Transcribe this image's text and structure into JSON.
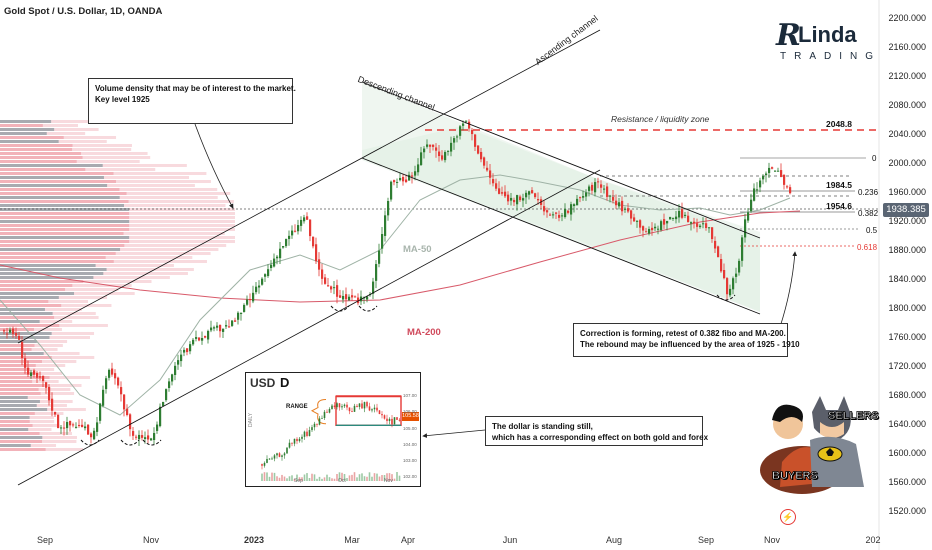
{
  "header": {
    "symbol": "Gold Spot / U.S. Dollar, 1D, OANDA"
  },
  "brand": {
    "name": "Linda",
    "sub": "TRADING",
    "initial": "R"
  },
  "price_tag": {
    "value": "1938.385",
    "color": "#5a6573"
  },
  "colors": {
    "up": "#2e7d32",
    "down": "#e53935",
    "ma200": "#d85a6a",
    "ma50": "#9fb3a6",
    "channel_fill": "#dfeee2",
    "resistance": "#e53935"
  },
  "annotations": {
    "descending": "Descending channel",
    "ascending": "Ascending channel",
    "resistance": "Resistance / liquidity zone",
    "ma50": "MA-50",
    "ma200": "MA-200",
    "callout1": [
      "Volume density that may be of interest to the market.",
      "Key level 1925"
    ],
    "callout2": [
      "Correction is forming, retest of 0.382 fibo and MA-200.",
      "The rebound may be influenced by the area of 1925 - 1910"
    ],
    "callout3": [
      "The dollar is standing still,",
      "which has a corresponding effect on both gold and forex"
    ]
  },
  "levels": {
    "l1": "2048.8",
    "l2": "1984.5",
    "l3": "1954.6"
  },
  "fibs": {
    "f0": "0",
    "f236": "0.236",
    "f382": "0.382",
    "f5": "0.5",
    "f618": "0.618"
  },
  "sellers_label": "SELLERS",
  "buyers_label": "BUYERS",
  "inset": {
    "title": "USD",
    "range_label": "RANGE",
    "side_label": "DAILY",
    "price_tag": "105.58",
    "y_ticks": [
      "107.00",
      "106.00",
      "105.00",
      "104.00",
      "103.00",
      "102.00"
    ],
    "x_ticks": [
      "Sep",
      "Oct",
      "Nov"
    ]
  },
  "chart_data": {
    "type": "candlestick",
    "title": "Gold Spot / U.S. Dollar, 1D, OANDA",
    "y_ticks": [
      "2200.000",
      "2160.000",
      "2120.000",
      "2080.000",
      "2040.000",
      "2000.000",
      "1960.000",
      "1920.000",
      "1880.000",
      "1840.000",
      "1800.000",
      "1760.000",
      "1720.000",
      "1680.000",
      "1640.000",
      "1600.000",
      "1560.000",
      "1520.000"
    ],
    "x_ticks": [
      "Sep",
      "Nov",
      "2023",
      "Mar",
      "Apr",
      "Jun",
      "Aug",
      "Sep",
      "Nov",
      "202"
    ],
    "ylim": [
      1510,
      2210
    ],
    "last_price": 1938.385,
    "approx_close_path": [
      {
        "t": "2022-08",
        "v": 1770
      },
      {
        "t": "2022-09",
        "v": 1740
      },
      {
        "t": "2022-09-28",
        "v": 1620
      },
      {
        "t": "2022-10-05",
        "v": 1720
      },
      {
        "t": "2022-11-03",
        "v": 1620
      },
      {
        "t": "2022-12",
        "v": 1790
      },
      {
        "t": "2023-01",
        "v": 1880
      },
      {
        "t": "2023-02-01",
        "v": 1950
      },
      {
        "t": "2023-02-28",
        "v": 1805
      },
      {
        "t": "2023-03-20",
        "v": 1990
      },
      {
        "t": "2023-04-13",
        "v": 2040
      },
      {
        "t": "2023-05-04",
        "v": 2060
      },
      {
        "t": "2023-06-01",
        "v": 1960
      },
      {
        "t": "2023-06-29",
        "v": 1900
      },
      {
        "t": "2023-07-20",
        "v": 1980
      },
      {
        "t": "2023-08-21",
        "v": 1885
      },
      {
        "t": "2023-09-15",
        "v": 1930
      },
      {
        "t": "2023-10-06",
        "v": 1815
      },
      {
        "t": "2023-10-27",
        "v": 2005
      },
      {
        "t": "2023-11-08",
        "v": 1950
      }
    ],
    "levels": [
      2048.8,
      1984.5,
      1954.6
    ],
    "fib_levels": [
      "0",
      "0.236",
      "0.382",
      "0.5",
      "0.618"
    ]
  }
}
